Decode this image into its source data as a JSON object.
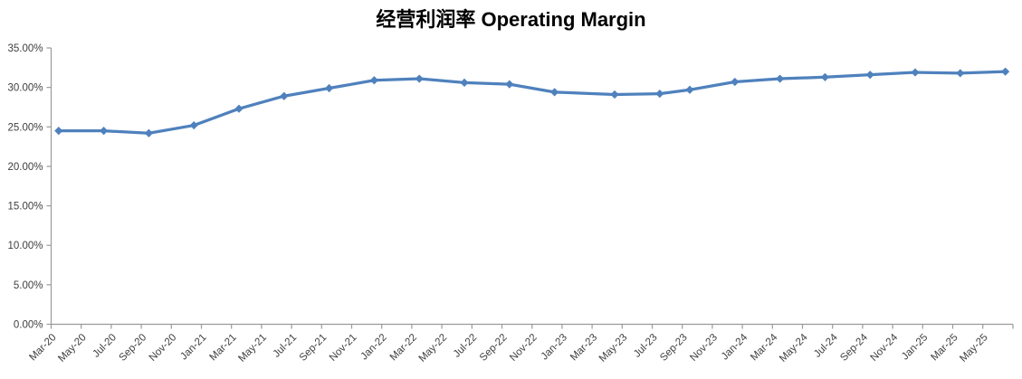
{
  "chart": {
    "title": "经营利润率 Operating Margin"
  },
  "chart_data": {
    "type": "line",
    "title": "经营利润率 Operating Margin",
    "legend": "none",
    "grid": false,
    "background_color": "#FFFFFF",
    "line_color": "#4F81BD",
    "axis_color": "#9B9B9B",
    "tick_label_color": "#3F3F3F",
    "marker": "diamond",
    "value_format": "percent",
    "y_axis": {
      "min": 0,
      "max": 35,
      "step": 5,
      "tick_labels": [
        "0.00%",
        "5.00%",
        "10.00%",
        "15.00%",
        "20.00%",
        "25.00%",
        "30.00%",
        "35.00%"
      ]
    },
    "x_axis": {
      "months_per_tick": 2,
      "tick_labels": [
        "Mar-20",
        "May-20",
        "Jul-20",
        "Sep-20",
        "Nov-20",
        "Jan-21",
        "Mar-21",
        "May-21",
        "Jul-21",
        "Sep-21",
        "Nov-21",
        "Jan-22",
        "Mar-22",
        "May-22",
        "Jul-22",
        "Sep-22",
        "Nov-22",
        "Jan-23",
        "Mar-23",
        "May-23",
        "Jul-23",
        "Sep-23",
        "Nov-23",
        "Jan-24",
        "Mar-24",
        "May-24",
        "Jul-24",
        "Sep-24",
        "Nov-24",
        "Jan-25",
        "Mar-25",
        "May-25"
      ]
    },
    "series": [
      {
        "name": "Operating Margin",
        "points": [
          {
            "period": "Mar-20",
            "month_offset": 0,
            "value": 24.5
          },
          {
            "period": "Jun-20",
            "month_offset": 3,
            "value": 24.5
          },
          {
            "period": "Sep-20",
            "month_offset": 6,
            "value": 24.2
          },
          {
            "period": "Dec-20",
            "month_offset": 9,
            "value": 25.2
          },
          {
            "period": "Mar-21",
            "month_offset": 12,
            "value": 27.3
          },
          {
            "period": "Jun-21",
            "month_offset": 15,
            "value": 28.9
          },
          {
            "period": "Sep-21",
            "month_offset": 18,
            "value": 29.9
          },
          {
            "period": "Dec-21",
            "month_offset": 21,
            "value": 30.9
          },
          {
            "period": "Mar-22",
            "month_offset": 24,
            "value": 31.1
          },
          {
            "period": "Jun-22",
            "month_offset": 27,
            "value": 30.6
          },
          {
            "period": "Sep-22",
            "month_offset": 30,
            "value": 30.4
          },
          {
            "period": "Dec-22",
            "month_offset": 33,
            "value": 29.4
          },
          {
            "period": "Apr-23",
            "month_offset": 37,
            "value": 29.1
          },
          {
            "period": "Jul-23",
            "month_offset": 40,
            "value": 29.2
          },
          {
            "period": "Sep-23",
            "month_offset": 42,
            "value": 29.7
          },
          {
            "period": "Dec-23",
            "month_offset": 45,
            "value": 30.7
          },
          {
            "period": "Mar-24",
            "month_offset": 48,
            "value": 31.1
          },
          {
            "period": "Jun-24",
            "month_offset": 51,
            "value": 31.3
          },
          {
            "period": "Sep-24",
            "month_offset": 54,
            "value": 31.6
          },
          {
            "period": "Dec-24",
            "month_offset": 57,
            "value": 31.9
          },
          {
            "period": "Mar-25",
            "month_offset": 60,
            "value": 31.8
          },
          {
            "period": "Jun-25",
            "month_offset": 63,
            "value": 32.0
          }
        ]
      }
    ]
  }
}
